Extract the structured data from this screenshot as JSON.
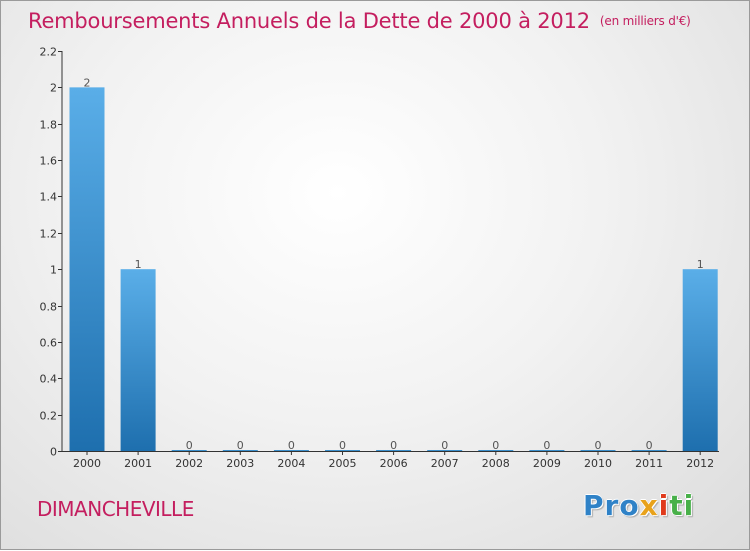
{
  "chart_data": {
    "type": "bar",
    "title": "Remboursements Annuels de la Dette de 2000 à 2012",
    "unit_note": "(en milliers d'€)",
    "categories": [
      "2000",
      "2001",
      "2002",
      "2003",
      "2004",
      "2005",
      "2006",
      "2007",
      "2008",
      "2009",
      "2010",
      "2011",
      "2012"
    ],
    "values": [
      2,
      1,
      0,
      0,
      0,
      0,
      0,
      0,
      0,
      0,
      0,
      0,
      1
    ],
    "data_labels": [
      "2",
      "1",
      "0",
      "0",
      "0",
      "0",
      "0",
      "0",
      "0",
      "0",
      "0",
      "0",
      "1"
    ],
    "ylim": [
      0,
      2.2
    ],
    "yticks": [
      0,
      0.2,
      0.4,
      0.6,
      0.8,
      1,
      1.2,
      1.4,
      1.6,
      1.8,
      2,
      2.2
    ],
    "ytick_labels": [
      "0",
      "0.2",
      "0.4",
      "0.6",
      "0.8",
      "1",
      "1.2",
      "1.4",
      "1.6",
      "1.8",
      "2",
      "2.2"
    ],
    "xlabel": "",
    "ylabel": "",
    "bar_color_top": "#5aaee8",
    "bar_color_bottom": "#1e6fae"
  },
  "commune": "DIMANCHEVILLE",
  "logo": {
    "parts": [
      "Pro",
      "x",
      "i",
      "ti"
    ]
  }
}
